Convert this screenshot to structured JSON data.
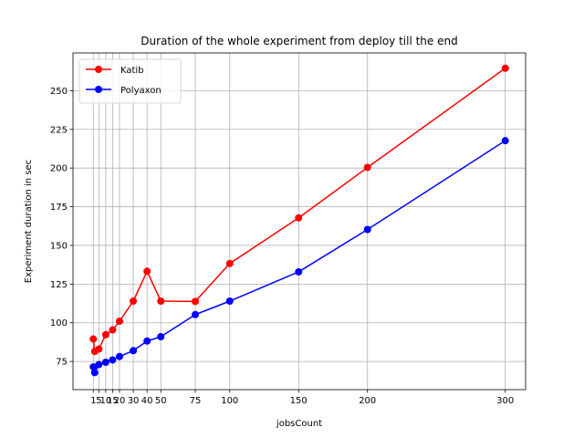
{
  "chart_data": {
    "type": "line",
    "title": "Duration of the whole experiment from deploy till the end",
    "xlabel": "jobsCount",
    "ylabel": "Experiment duration in sec",
    "xlim": [
      -13.75,
      314.75
    ],
    "ylim": [
      56.8,
      274.4
    ],
    "grid": true,
    "legend_position": "top-left",
    "x_ticks": [
      1,
      5,
      10,
      15,
      20,
      30,
      40,
      50,
      75,
      100,
      150,
      200,
      300
    ],
    "x_tick_labels": [
      "1",
      "5",
      "10",
      "15",
      "20",
      "30",
      "40",
      "50",
      "75",
      "100",
      "150",
      "200",
      "300"
    ],
    "y_ticks": [
      75,
      100,
      125,
      150,
      175,
      200,
      225,
      250
    ],
    "y_tick_labels": [
      "75",
      "100",
      "125",
      "150",
      "175",
      "200",
      "225",
      "250"
    ],
    "series": [
      {
        "name": "Katib",
        "color": "#ff0000",
        "x": [
          1,
          2,
          5,
          10,
          15,
          20,
          30,
          40,
          50,
          75,
          100,
          150,
          200,
          300
        ],
        "values": [
          89.5,
          81.5,
          83.0,
          92.3,
          95.4,
          101.0,
          114.0,
          133.3,
          114.0,
          113.8,
          138.3,
          167.8,
          200.4,
          264.5
        ]
      },
      {
        "name": "Polyaxon",
        "color": "#0000ff",
        "x": [
          1,
          2,
          5,
          10,
          15,
          20,
          30,
          40,
          50,
          75,
          100,
          150,
          200,
          300
        ],
        "values": [
          71.5,
          67.8,
          73.0,
          74.5,
          76.0,
          78.2,
          82.0,
          88.2,
          91.0,
          105.3,
          114.0,
          132.9,
          160.3,
          217.7
        ]
      }
    ]
  }
}
